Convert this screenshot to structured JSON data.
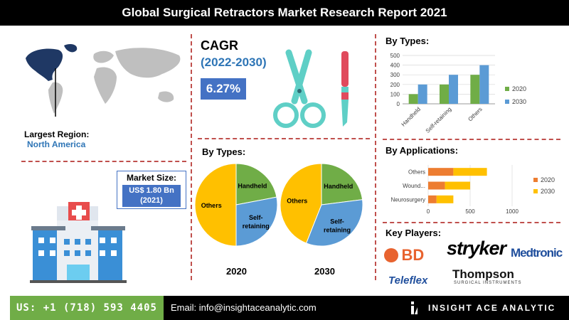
{
  "header": {
    "title": "Global Surgical Retractors Market Research Report 2021"
  },
  "region": {
    "label": "Largest Region:",
    "value": "North America"
  },
  "market_size": {
    "label": "Market Size:",
    "value": "US$ 1.80 Bn",
    "year": "(2021)"
  },
  "cagr": {
    "label": "CAGR",
    "period": "(2022-2030)",
    "value": "6.27%"
  },
  "pie_section": {
    "title": "By Types:",
    "year_left": "2020",
    "year_right": "2030"
  },
  "bar_types": {
    "title": "By Types:"
  },
  "bar_apps": {
    "title": "By Applications:"
  },
  "key_players": {
    "title": "Key Players:",
    "logos": [
      "BD",
      "stryker",
      "Medtronic",
      "Teleflex",
      "Thompson",
      "SURGICAL INSTRUMENTS"
    ]
  },
  "footer": {
    "phone": "US: +1 (718) 593 4405",
    "email": "Email: info@insightaceanalytic.com",
    "brand": "INSIGHT ACE ANALYTIC"
  },
  "colors": {
    "blue": "#4472c4",
    "orange_bar": "#ed7d31",
    "yellow": "#ffc000",
    "green": "#70ad47",
    "pie_blue": "#5b9bd5",
    "accent_red": "#c0504d"
  },
  "chart_data": [
    {
      "type": "pie",
      "name": "2020",
      "labels": [
        "Others",
        "Handheld",
        "Self-retaining"
      ],
      "values": [
        50,
        22,
        28
      ],
      "colors": [
        "#ffc000",
        "#70ad47",
        "#5b9bd5"
      ]
    },
    {
      "type": "pie",
      "name": "2030",
      "labels": [
        "Others",
        "Handheld",
        "Self-retaining"
      ],
      "values": [
        44,
        23,
        33
      ],
      "colors": [
        "#ffc000",
        "#70ad47",
        "#5b9bd5"
      ]
    },
    {
      "type": "bar",
      "categories": [
        "Handheld",
        "Self-retaining",
        "Others"
      ],
      "series": [
        {
          "name": "2020",
          "values": [
            100,
            200,
            300
          ],
          "color": "#70ad47"
        },
        {
          "name": "2030",
          "values": [
            200,
            300,
            400
          ],
          "color": "#5b9bd5"
        }
      ],
      "ylim": [
        0,
        500
      ],
      "yticks": [
        0,
        100,
        200,
        300,
        400,
        500
      ]
    },
    {
      "type": "bar",
      "orientation": "horizontal",
      "stacked": true,
      "categories": [
        "Others",
        "Wound...",
        "Neurosurgery"
      ],
      "series": [
        {
          "name": "2020",
          "values": [
            300,
            200,
            100
          ],
          "color": "#ed7d31"
        },
        {
          "name": "2030",
          "values": [
            400,
            300,
            200
          ],
          "color": "#ffc000"
        }
      ],
      "xlim": [
        0,
        1000
      ],
      "xticks": [
        0,
        500,
        1000
      ]
    }
  ]
}
